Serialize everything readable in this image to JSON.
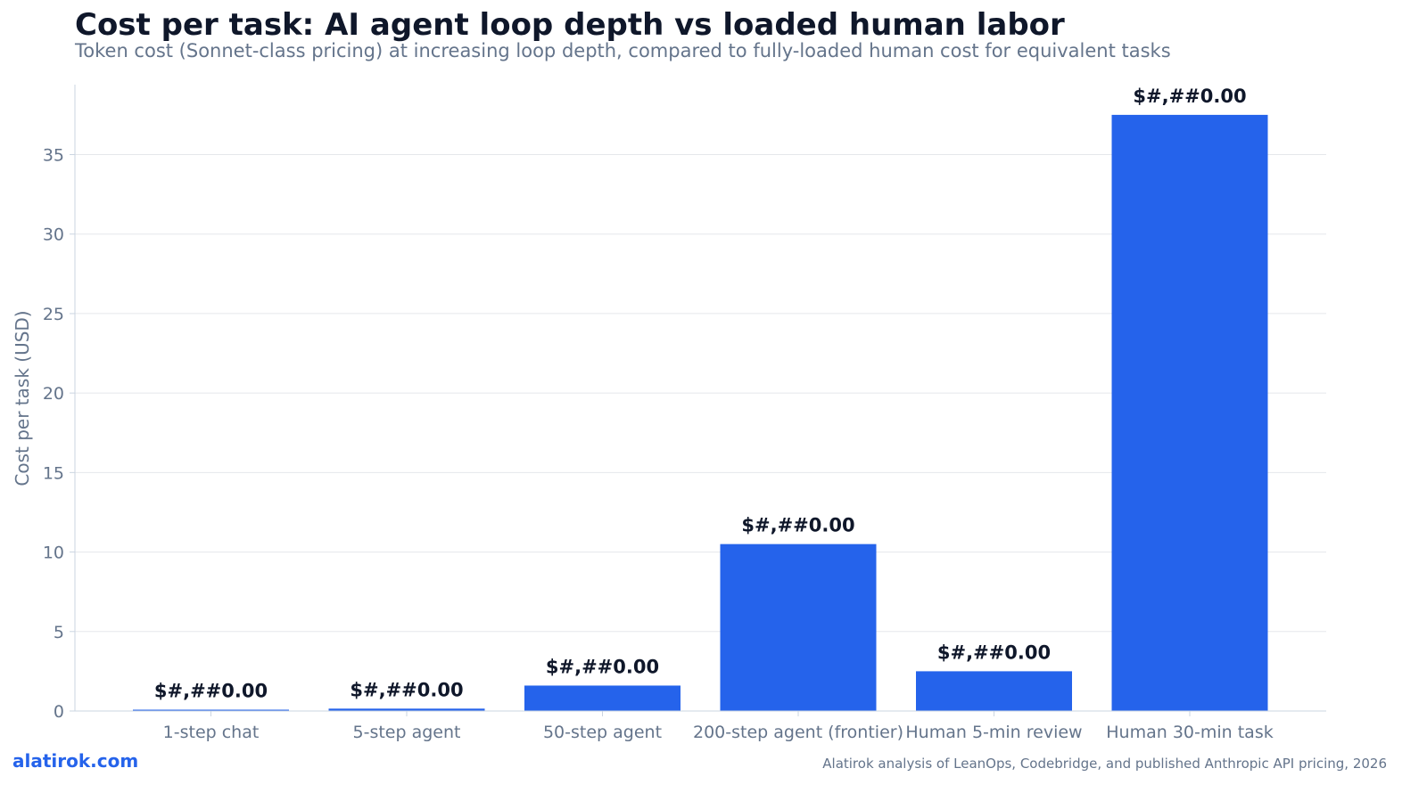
{
  "header": {
    "title": "Cost per task: AI agent loop depth vs loaded human labor",
    "subtitle": "Token cost (Sonnet-class pricing) at increasing loop depth, compared to fully-loaded human cost for equivalent tasks"
  },
  "footer": {
    "brand": "alatirok.com",
    "source": "Alatirok analysis of LeanOps, Codebridge, and published Anthropic API pricing, 2026"
  },
  "colors": {
    "bar": "#2563eb",
    "grid": "#e5e7eb",
    "axis": "#cbd5e1",
    "tick_text": "#64748b",
    "label_text": "#0f172a"
  },
  "chart_data": {
    "type": "bar",
    "categories": [
      "1-step chat",
      "5-step agent",
      "50-step agent",
      "200-step agent (frontier)",
      "Human 5-min review",
      "Human 30-min task"
    ],
    "values": [
      0.03,
      0.15,
      1.6,
      10.5,
      2.5,
      37.5
    ],
    "data_labels": [
      "$#,##0.00",
      "$#,##0.00",
      "$#,##0.00",
      "$#,##0.00",
      "$#,##0.00",
      "$#,##0.00"
    ],
    "ylabel": "Cost per task (USD)",
    "xlabel": "",
    "ylim": [
      0,
      39.4
    ],
    "yticks": [
      0,
      5,
      10,
      15,
      20,
      25,
      30,
      35
    ],
    "grid": true,
    "legend": "none"
  }
}
